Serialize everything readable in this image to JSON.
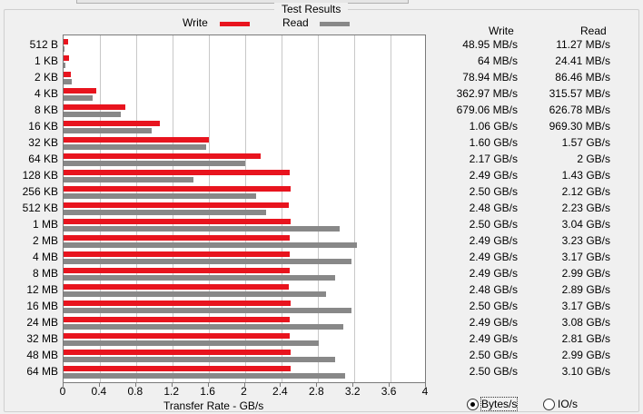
{
  "group_title": "Test Results",
  "legend": {
    "write_label": "Write",
    "read_label": "Read",
    "write_color": "#e8141e",
    "read_color": "#888888"
  },
  "table": {
    "write_header": "Write",
    "read_header": "Read"
  },
  "options": {
    "bytes_label": "Bytes/s",
    "io_label": "IO/s",
    "selected": "bytes"
  },
  "chart_data": {
    "type": "bar",
    "orientation": "horizontal",
    "xlabel": "Transfer Rate - GB/s",
    "xlim": [
      0,
      4
    ],
    "xticks": [
      "0",
      "0.4",
      "0.8",
      "1.2",
      "1.6",
      "2",
      "2.4",
      "2.8",
      "3.2",
      "3.6",
      "4"
    ],
    "grid": true,
    "legend_position": "top",
    "categories": [
      "512 B",
      "1 KB",
      "2 KB",
      "4 KB",
      "8 KB",
      "16 KB",
      "32 KB",
      "64 KB",
      "128 KB",
      "256 KB",
      "512 KB",
      "1 MB",
      "2 MB",
      "4 MB",
      "8 MB",
      "12 MB",
      "16 MB",
      "24 MB",
      "32 MB",
      "48 MB",
      "64 MB"
    ],
    "series": [
      {
        "name": "Write",
        "values": [
          0.049,
          0.064,
          0.079,
          0.363,
          0.679,
          1.06,
          1.6,
          2.17,
          2.49,
          2.5,
          2.48,
          2.5,
          2.49,
          2.49,
          2.49,
          2.48,
          2.5,
          2.49,
          2.49,
          2.5,
          2.5
        ],
        "labels": [
          "48.95 MB/s",
          "64 MB/s",
          "78.94 MB/s",
          "362.97 MB/s",
          "679.06 MB/s",
          "1.06 GB/s",
          "1.60 GB/s",
          "2.17 GB/s",
          "2.49 GB/s",
          "2.50 GB/s",
          "2.48 GB/s",
          "2.50 GB/s",
          "2.49 GB/s",
          "2.49 GB/s",
          "2.49 GB/s",
          "2.48 GB/s",
          "2.50 GB/s",
          "2.49 GB/s",
          "2.49 GB/s",
          "2.50 GB/s",
          "2.50 GB/s"
        ]
      },
      {
        "name": "Read",
        "values": [
          0.011,
          0.024,
          0.086,
          0.316,
          0.627,
          0.969,
          1.57,
          2.0,
          1.43,
          2.12,
          2.23,
          3.04,
          3.23,
          3.17,
          2.99,
          2.89,
          3.17,
          3.08,
          2.81,
          2.99,
          3.1
        ],
        "labels": [
          "11.27 MB/s",
          "24.41 MB/s",
          "86.46 MB/s",
          "315.57 MB/s",
          "626.78 MB/s",
          "969.30 MB/s",
          "1.57 GB/s",
          "2 GB/s",
          "1.43 GB/s",
          "2.12 GB/s",
          "2.23 GB/s",
          "3.04 GB/s",
          "3.23 GB/s",
          "3.17 GB/s",
          "2.99 GB/s",
          "2.89 GB/s",
          "3.17 GB/s",
          "3.08 GB/s",
          "2.81 GB/s",
          "2.99 GB/s",
          "3.10 GB/s"
        ]
      }
    ]
  }
}
